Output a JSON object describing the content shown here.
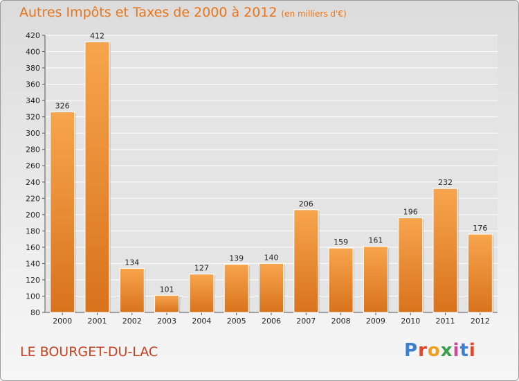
{
  "title": "Autres Impôts et Taxes de 2000 à 2012",
  "unit": "(en milliers d'€)",
  "location": "LE BOURGET-DU-LAC",
  "brand": "Proxiti",
  "colors": {
    "bar_light": "#f7a54e",
    "bar_dark": "#d8731c",
    "title": "#e8741a",
    "location": "#c8401e"
  },
  "chart_data": {
    "type": "bar",
    "categories": [
      "2000",
      "2001",
      "2002",
      "2003",
      "2004",
      "2005",
      "2006",
      "2007",
      "2008",
      "2009",
      "2010",
      "2011",
      "2012"
    ],
    "values": [
      326,
      412,
      134,
      101,
      127,
      139,
      140,
      206,
      159,
      161,
      196,
      232,
      176
    ],
    "ylim": [
      80,
      420
    ],
    "yticks": [
      80,
      100,
      120,
      140,
      160,
      180,
      200,
      220,
      240,
      260,
      280,
      300,
      320,
      340,
      360,
      380,
      400,
      420
    ],
    "grid": true
  }
}
